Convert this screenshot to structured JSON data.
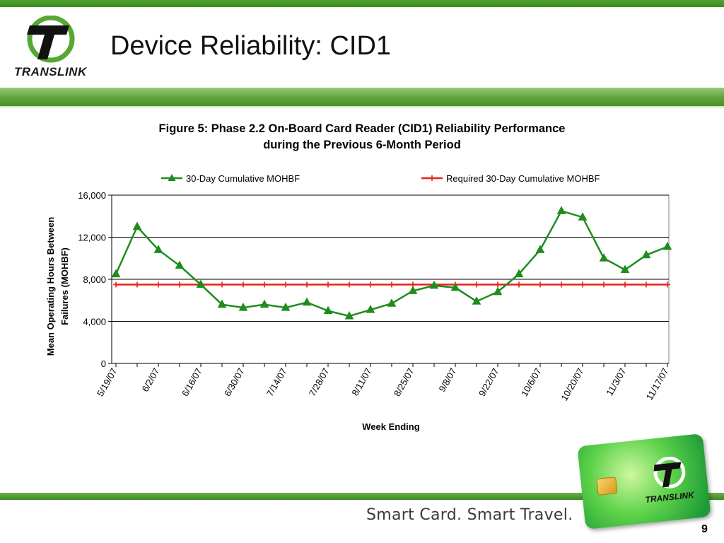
{
  "slide": {
    "title": "Device Reliability: CID1",
    "logo_text": "TRANSLINK",
    "tagline": "Smart Card. Smart Travel.",
    "card_logo_text": "TRANSLINK",
    "page_number": "9"
  },
  "figure": {
    "caption_line1": "Figure 5: Phase 2.2 On-Board Card Reader (CID1) Reliability Performance",
    "caption_line2": "during the Previous 6-Month Period"
  },
  "colors": {
    "brand_green": "#4a9a2c",
    "series_green": "#1e8c1e",
    "series_red": "#e8201a"
  },
  "chart_data": {
    "type": "line",
    "title": "Figure 5: Phase 2.2 On-Board Card Reader (CID1) Reliability Performance during the Previous 6-Month Period",
    "xlabel": "Week Ending",
    "ylabel_lines": [
      "Mean Operating Hours Between",
      "Failures (MOHBF)"
    ],
    "ylim": [
      0,
      16000
    ],
    "yticks": [
      0,
      4000,
      8000,
      12000,
      16000
    ],
    "ytick_labels": [
      "0",
      "4,000",
      "8,000",
      "12,000",
      "16,000"
    ],
    "grid": "horizontal",
    "legend_position": "top",
    "x_count": 27,
    "x_tick_labels": [
      "5/19/07",
      "6/2/07",
      "6/16/07",
      "6/30/07",
      "7/14/07",
      "7/28/07",
      "8/11/07",
      "8/25/07",
      "9/8/07",
      "9/22/07",
      "10/6/07",
      "10/20/07",
      "11/3/07",
      "11/17/07"
    ],
    "x_tick_every": 2,
    "series": [
      {
        "name": "30-Day Cumulative MOHBF",
        "color": "#1e8c1e",
        "marker": "triangle",
        "values": [
          8500,
          13000,
          10800,
          9300,
          7500,
          5600,
          5300,
          5600,
          5300,
          5800,
          5000,
          4500,
          5100,
          5700,
          6900,
          7400,
          7200,
          5900,
          6800,
          8500,
          10800,
          14500,
          13900,
          10000,
          8900,
          10300,
          11100
        ]
      },
      {
        "name": "Required 30-Day Cumulative MOHBF",
        "color": "#e8201a",
        "marker": "plus",
        "values": [
          7500,
          7500,
          7500,
          7500,
          7500,
          7500,
          7500,
          7500,
          7500,
          7500,
          7500,
          7500,
          7500,
          7500,
          7500,
          7500,
          7500,
          7500,
          7500,
          7500,
          7500,
          7500,
          7500,
          7500,
          7500,
          7500,
          7500
        ]
      }
    ]
  }
}
